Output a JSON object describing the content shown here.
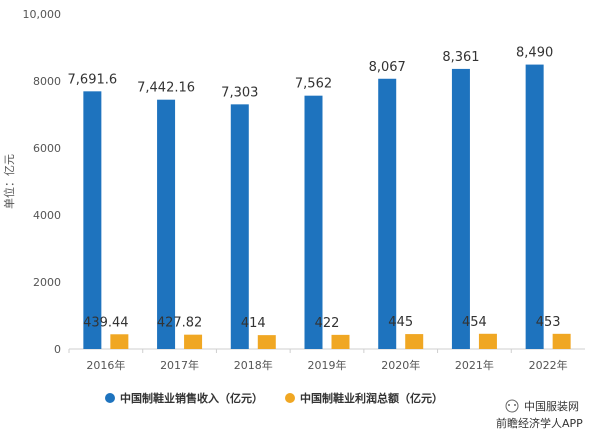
{
  "chart_data": {
    "type": "bar",
    "categories": [
      "2016年",
      "2017年",
      "2018年",
      "2019年",
      "2020年",
      "2021年",
      "2022年"
    ],
    "series": [
      {
        "name": "中国制鞋业销售收入（亿元）",
        "values": [
          7691.6,
          7442.16,
          7303,
          7562,
          8067,
          8361,
          8490
        ],
        "labels": [
          "7,691.6",
          "7,442.16",
          "7,303",
          "7,562",
          "8,067",
          "8,361",
          "8,490"
        ],
        "color": "#1e73be"
      },
      {
        "name": "中国制鞋业利润总额（亿元）",
        "values": [
          439.44,
          427.82,
          414,
          422,
          445,
          454,
          453
        ],
        "labels": [
          "439.44",
          "427.82",
          "414",
          "422",
          "445",
          "454",
          "453"
        ],
        "color": "#f0a723"
      }
    ],
    "ylabel": "单位：亿元",
    "ylim": [
      0,
      10000
    ],
    "yticks": [
      "0",
      "2000",
      "4000",
      "6000",
      "8000",
      "10,000"
    ],
    "grid": false,
    "legend_position": "bottom-left"
  },
  "watermark": {
    "source": "中国服装网",
    "account": "前瞻经济学人APP"
  }
}
